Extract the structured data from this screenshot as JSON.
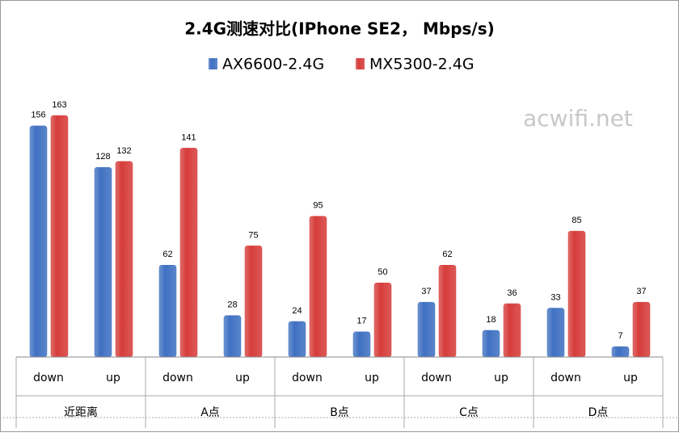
{
  "chart_data": {
    "type": "bar",
    "title": "2.4G测速对比(IPhone SE2， Mbps/s)",
    "watermark": "acwifi.net",
    "categories": [
      "down",
      "up",
      "down",
      "up",
      "down",
      "up",
      "down",
      "up",
      "down",
      "up"
    ],
    "groups": [
      "近距离",
      "A点",
      "B点",
      "C点",
      "D点"
    ],
    "series": [
      {
        "name": "AX6600-2.4G",
        "color": "#3f70c2",
        "values": [
          156,
          128,
          62,
          28,
          24,
          17,
          37,
          18,
          33,
          7
        ]
      },
      {
        "name": "MX5300-2.4G",
        "color": "#d63c3a",
        "values": [
          163,
          132,
          141,
          75,
          95,
          50,
          62,
          36,
          85,
          37
        ]
      }
    ]
  }
}
